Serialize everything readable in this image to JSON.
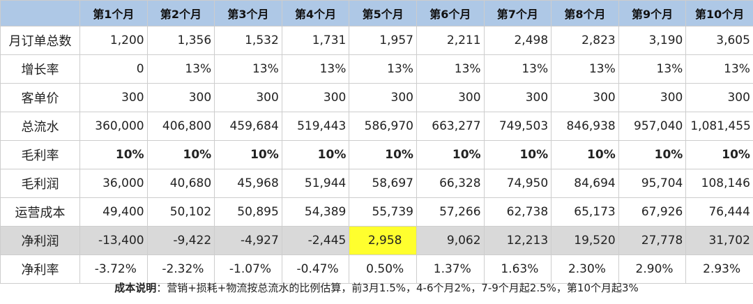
{
  "table": {
    "header": [
      "",
      "第1个月",
      "第2个月",
      "第3个月",
      "第4个月",
      "第5个月",
      "第6个月",
      "第7个月",
      "第8个月",
      "第9个月",
      "第10个月"
    ],
    "rows": [
      {
        "label": "月订单总数",
        "cells": [
          "1,200",
          "1,356",
          "1,532",
          "1,731",
          "1,957",
          "2,211",
          "2,498",
          "2,823",
          "3,190",
          "3,605"
        ]
      },
      {
        "label": "增长率",
        "cells": [
          "0",
          "13%",
          "13%",
          "13%",
          "13%",
          "13%",
          "13%",
          "13%",
          "13%",
          "13%"
        ]
      },
      {
        "label": "客单价",
        "cells": [
          "300",
          "300",
          "300",
          "300",
          "300",
          "300",
          "300",
          "300",
          "300",
          "300"
        ]
      },
      {
        "label": "总流水",
        "cells": [
          "360,000",
          "406,800",
          "459,684",
          "519,443",
          "586,970",
          "663,277",
          "749,503",
          "846,938",
          "957,040",
          "1,081,455"
        ]
      },
      {
        "label": "毛利率",
        "cells": [
          "10%",
          "10%",
          "10%",
          "10%",
          "10%",
          "10%",
          "10%",
          "10%",
          "10%",
          "10%"
        ]
      },
      {
        "label": "毛利润",
        "cells": [
          "36,000",
          "40,680",
          "45,968",
          "51,944",
          "58,697",
          "66,328",
          "74,950",
          "84,694",
          "95,704",
          "108,146"
        ]
      },
      {
        "label": "运营成本",
        "cells": [
          "49,400",
          "50,102",
          "50,895",
          "54,389",
          "55,739",
          "57,266",
          "62,738",
          "65,173",
          "67,926",
          "76,444"
        ]
      },
      {
        "label": "净利润",
        "cells": [
          "-13,400",
          "-9,422",
          "-4,927",
          "-2,445",
          "2,958",
          "9,062",
          "12,213",
          "19,520",
          "27,778",
          "31,702"
        ]
      },
      {
        "label": "净利率",
        "cells": [
          "-3.72%",
          "-2.32%",
          "-1.07%",
          "-0.47%",
          "0.50%",
          "1.37%",
          "1.63%",
          "2.30%",
          "2.90%",
          "2.93%"
        ]
      }
    ]
  },
  "colors": {
    "header_bg": "#aec8e6",
    "highlight": "#ffff2e",
    "net_profit_row_bg": "#d9d9d9"
  },
  "note": {
    "label": "成本说明",
    "text": "：营销+损耗+物流按总流水的比例估算，前3月1.5%，4-6个月2%，7-9个月起2.5%，第10个月起3%"
  }
}
